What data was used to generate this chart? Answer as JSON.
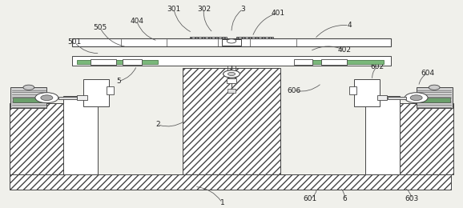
{
  "bg_color": "#f0f0eb",
  "line_color": "#444444",
  "figsize": [
    5.78,
    2.6
  ],
  "dpi": 100,
  "labels_pos": {
    "1": [
      0.48,
      0.022,
      0.42,
      0.1
    ],
    "2": [
      0.34,
      0.4,
      0.4,
      0.42
    ],
    "3": [
      0.525,
      0.96,
      0.5,
      0.845
    ],
    "4": [
      0.755,
      0.88,
      0.68,
      0.815
    ],
    "5": [
      0.255,
      0.61,
      0.295,
      0.685
    ],
    "6": [
      0.745,
      0.04,
      0.735,
      0.095
    ],
    "301": [
      0.375,
      0.96,
      0.415,
      0.845
    ],
    "302": [
      0.44,
      0.96,
      0.46,
      0.845
    ],
    "401": [
      0.6,
      0.94,
      0.545,
      0.825
    ],
    "402": [
      0.745,
      0.76,
      0.67,
      0.755
    ],
    "404": [
      0.295,
      0.9,
      0.34,
      0.805
    ],
    "505": [
      0.215,
      0.87,
      0.275,
      0.775
    ],
    "501": [
      0.16,
      0.8,
      0.215,
      0.745
    ],
    "601": [
      0.67,
      0.04,
      0.685,
      0.095
    ],
    "602": [
      0.815,
      0.68,
      0.805,
      0.615
    ],
    "603": [
      0.89,
      0.04,
      0.875,
      0.095
    ],
    "604": [
      0.925,
      0.65,
      0.905,
      0.585
    ],
    "606": [
      0.635,
      0.565,
      0.695,
      0.6
    ]
  }
}
